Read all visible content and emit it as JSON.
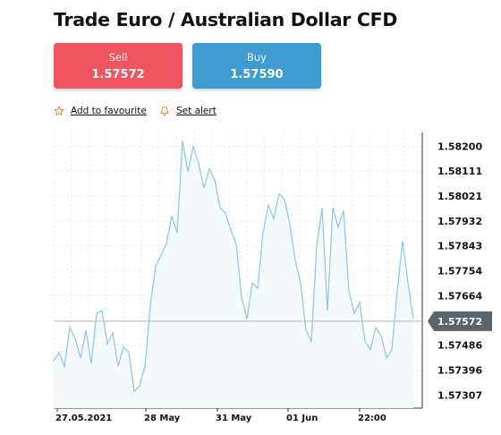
{
  "header": {
    "title": "Trade Euro / Australian Dollar CFD"
  },
  "trade": {
    "sell": {
      "label": "Sell",
      "price": "1.57572",
      "color": "#f0545f"
    },
    "buy": {
      "label": "Buy",
      "price": "1.57590",
      "color": "#3d9bd0"
    }
  },
  "actions": {
    "favourite": {
      "label": "Add to favourite",
      "icon": "star-icon"
    },
    "alert": {
      "label": "Set alert",
      "icon": "bell-icon"
    }
  },
  "chart_data": {
    "type": "line",
    "ylim": [
      1.5726,
      1.5825
    ],
    "y_ticks": [
      "1.58200",
      "1.58111",
      "1.58021",
      "1.57932",
      "1.57843",
      "1.57754",
      "1.57664",
      "1.57572",
      "1.57486",
      "1.57396",
      "1.57307"
    ],
    "x_ticks": [
      "27.05.2021",
      "28 May",
      "31 May",
      "01 Jun",
      "22:00"
    ],
    "current_price": "1.57572",
    "line_color": "#8cc6df",
    "grid": true,
    "series": [
      {
        "values": [
          1.5743,
          1.5746,
          1.5741,
          1.5755,
          1.5751,
          1.5744,
          1.5754,
          1.5742,
          1.576,
          1.5761,
          1.5749,
          1.5753,
          1.5741,
          1.5748,
          1.5746,
          1.5732,
          1.5734,
          1.5741,
          1.5763,
          1.5777,
          1.5781,
          1.5785,
          1.5795,
          1.5789,
          1.5822,
          1.5811,
          1.582,
          1.5814,
          1.5805,
          1.5812,
          1.5808,
          1.5798,
          1.5796,
          1.579,
          1.5785,
          1.5766,
          1.5758,
          1.5771,
          1.5769,
          1.5789,
          1.5799,
          1.5794,
          1.5803,
          1.5801,
          1.5792,
          1.5779,
          1.5771,
          1.5754,
          1.575,
          1.5784,
          1.5798,
          1.5761,
          1.5798,
          1.5791,
          1.5797,
          1.5768,
          1.576,
          1.5764,
          1.575,
          1.5747,
          1.5755,
          1.5752,
          1.5744,
          1.5747,
          1.5768,
          1.5786,
          1.5771,
          1.5758
        ]
      }
    ]
  }
}
